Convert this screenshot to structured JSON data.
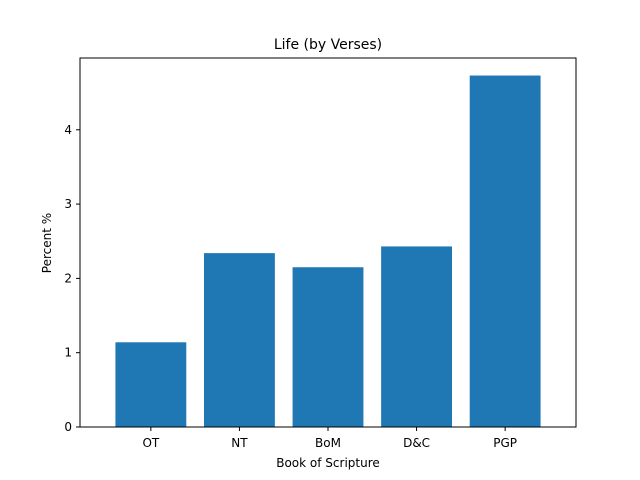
{
  "chart_data": {
    "type": "bar",
    "title": "Life (by Verses)",
    "xlabel": "Book of Scripture",
    "ylabel": "Percent %",
    "categories": [
      "OT",
      "NT",
      "BoM",
      "D&C",
      "PGP"
    ],
    "values": [
      1.14,
      2.34,
      2.15,
      2.43,
      4.73
    ],
    "ylim": [
      0,
      4.966
    ],
    "yticks": [
      0,
      1,
      2,
      3,
      4
    ],
    "grid": false,
    "bar_color": "#1f77b4"
  }
}
